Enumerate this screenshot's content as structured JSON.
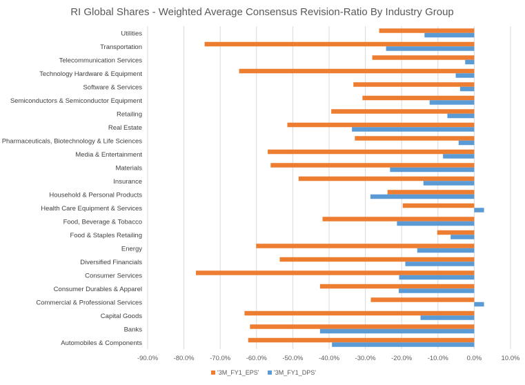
{
  "chart_data": {
    "type": "bar",
    "orientation": "horizontal",
    "title": "RI Global Shares - Weighted Average Consensus Revision-Ratio By Industry Group",
    "xlabel": "",
    "ylabel": "",
    "xlim": [
      -0.9,
      0.1
    ],
    "xticks": [
      "-90.0%",
      "-80.0%",
      "-70.0%",
      "-60.0%",
      "-50.0%",
      "-40.0%",
      "-30.0%",
      "-20.0%",
      "-10.0%",
      "0.0%",
      "10.0%"
    ],
    "grid": "vertical",
    "legend_position": "bottom",
    "categories": [
      "Utilities",
      "Transportation",
      "Telecommunication Services",
      "Technology Hardware & Equipment",
      "Software & Services",
      "Semiconductors & Semiconductor Equipment",
      "Retailing",
      "Real Estate",
      "Pharmaceuticals, Biotechnology & Life Sciences",
      "Media & Entertainment",
      "Materials",
      "Insurance",
      "Household & Personal Products",
      "Health Care Equipment & Services",
      "Food, Beverage & Tobacco",
      "Food & Staples Retailing",
      "Energy",
      "Diversified Financials",
      "Consumer Services",
      "Consumer Durables & Apparel",
      "Commercial & Professional Services",
      "Capital Goods",
      "Banks",
      "Automobiles & Components"
    ],
    "series": [
      {
        "name": "'3M_FY1_EPS'",
        "color": "#ED7D31",
        "values": [
          -0.262,
          -0.743,
          -0.281,
          -0.648,
          -0.333,
          -0.308,
          -0.394,
          -0.515,
          -0.329,
          -0.569,
          -0.561,
          -0.484,
          -0.239,
          -0.197,
          -0.418,
          -0.102,
          -0.601,
          -0.536,
          -0.767,
          -0.425,
          -0.285,
          -0.633,
          -0.618,
          -0.623
        ]
      },
      {
        "name": "'3M_FY1_DPS'",
        "color": "#5B9BD5",
        "values": [
          -0.137,
          -0.243,
          -0.025,
          -0.051,
          -0.039,
          -0.123,
          -0.074,
          -0.337,
          -0.043,
          -0.086,
          -0.232,
          -0.14,
          -0.286,
          0.027,
          -0.213,
          -0.065,
          -0.157,
          -0.19,
          -0.207,
          -0.208,
          0.027,
          -0.148,
          -0.425,
          -0.392
        ]
      }
    ]
  }
}
